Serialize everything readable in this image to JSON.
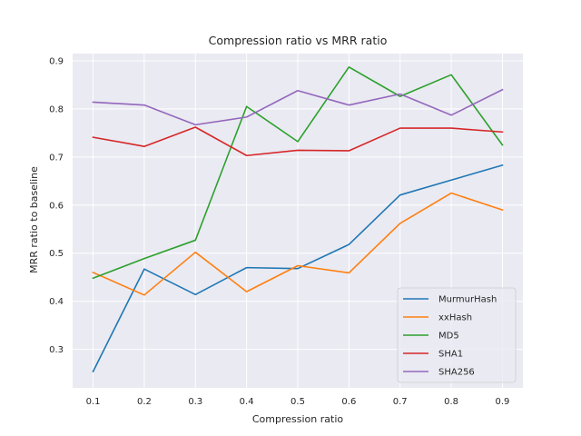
{
  "chart_data": {
    "type": "line",
    "title": "Compression ratio vs MRR ratio",
    "xlabel": "Compression ratio",
    "ylabel": "MRR ratio to baseline",
    "x": [
      0.1,
      0.2,
      0.3,
      0.4,
      0.5,
      0.6,
      0.7,
      0.8,
      0.9
    ],
    "xticks": [
      "0.1",
      "0.2",
      "0.3",
      "0.4",
      "0.5",
      "0.6",
      "0.7",
      "0.8",
      "0.9"
    ],
    "yticks": [
      "0.3",
      "0.4",
      "0.5",
      "0.6",
      "0.7",
      "0.8",
      "0.9"
    ],
    "xlim": [
      0.06,
      0.94
    ],
    "ylim": [
      0.22,
      0.915
    ],
    "grid": true,
    "legend_position": "lower right",
    "background": "#eaeaf2",
    "series": [
      {
        "name": "MurmurHash",
        "color": "#1f77b4",
        "values": [
          0.254,
          0.467,
          0.414,
          0.47,
          0.468,
          0.518,
          0.621,
          0.652,
          0.683
        ]
      },
      {
        "name": "xxHash",
        "color": "#ff7f0e",
        "values": [
          0.46,
          0.413,
          0.502,
          0.42,
          0.474,
          0.459,
          0.562,
          0.625,
          0.59
        ]
      },
      {
        "name": "MD5",
        "color": "#2ca02c",
        "values": [
          0.448,
          0.489,
          0.527,
          0.805,
          0.732,
          0.887,
          0.826,
          0.871,
          0.725
        ]
      },
      {
        "name": "SHA1",
        "color": "#d62728",
        "values": [
          0.741,
          0.722,
          0.762,
          0.703,
          0.714,
          0.713,
          0.76,
          0.76,
          0.752
        ]
      },
      {
        "name": "SHA256",
        "color": "#9467bd",
        "values": [
          0.814,
          0.808,
          0.767,
          0.783,
          0.838,
          0.808,
          0.831,
          0.787,
          0.84
        ]
      }
    ]
  }
}
